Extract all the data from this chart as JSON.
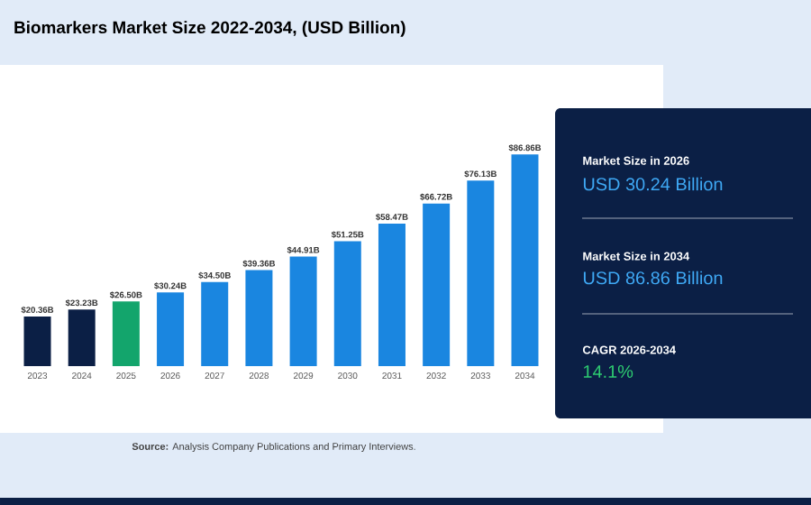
{
  "chart_data": {
    "type": "bar",
    "title": "Biomarkers Market Size 2022-2034, (USD Billion)",
    "categories": [
      "2023",
      "2024",
      "2025",
      "2026",
      "2027",
      "2028",
      "2029",
      "2030",
      "2031",
      "2032",
      "2033",
      "2034"
    ],
    "values": [
      20.36,
      23.23,
      26.5,
      30.24,
      34.5,
      39.36,
      44.91,
      51.25,
      58.47,
      66.72,
      76.13,
      86.86
    ],
    "value_labels": [
      "$20.36B",
      "$23.23B",
      "$26.50B",
      "$30.24B",
      "$34.50B",
      "$39.36B",
      "$44.91B",
      "$51.25B",
      "$58.47B",
      "$66.72B",
      "$76.13B",
      "$86.86B"
    ],
    "colors": [
      "#0b1f45",
      "#0b1f45",
      "#13a56c",
      "#1a86e0",
      "#1a86e0",
      "#1a86e0",
      "#1a86e0",
      "#1a86e0",
      "#1a86e0",
      "#1a86e0",
      "#1a86e0",
      "#1a86e0"
    ],
    "annotations": [
      "Market Size in 2026",
      "USD 30.24 Billion",
      "Market Size in 2034",
      "USD 86.86 Billion",
      "CAGR 2026-2034",
      "14.1%",
      "**Source:** Analysis Company Publications and Primary Interviews."
    ]
  }
}
